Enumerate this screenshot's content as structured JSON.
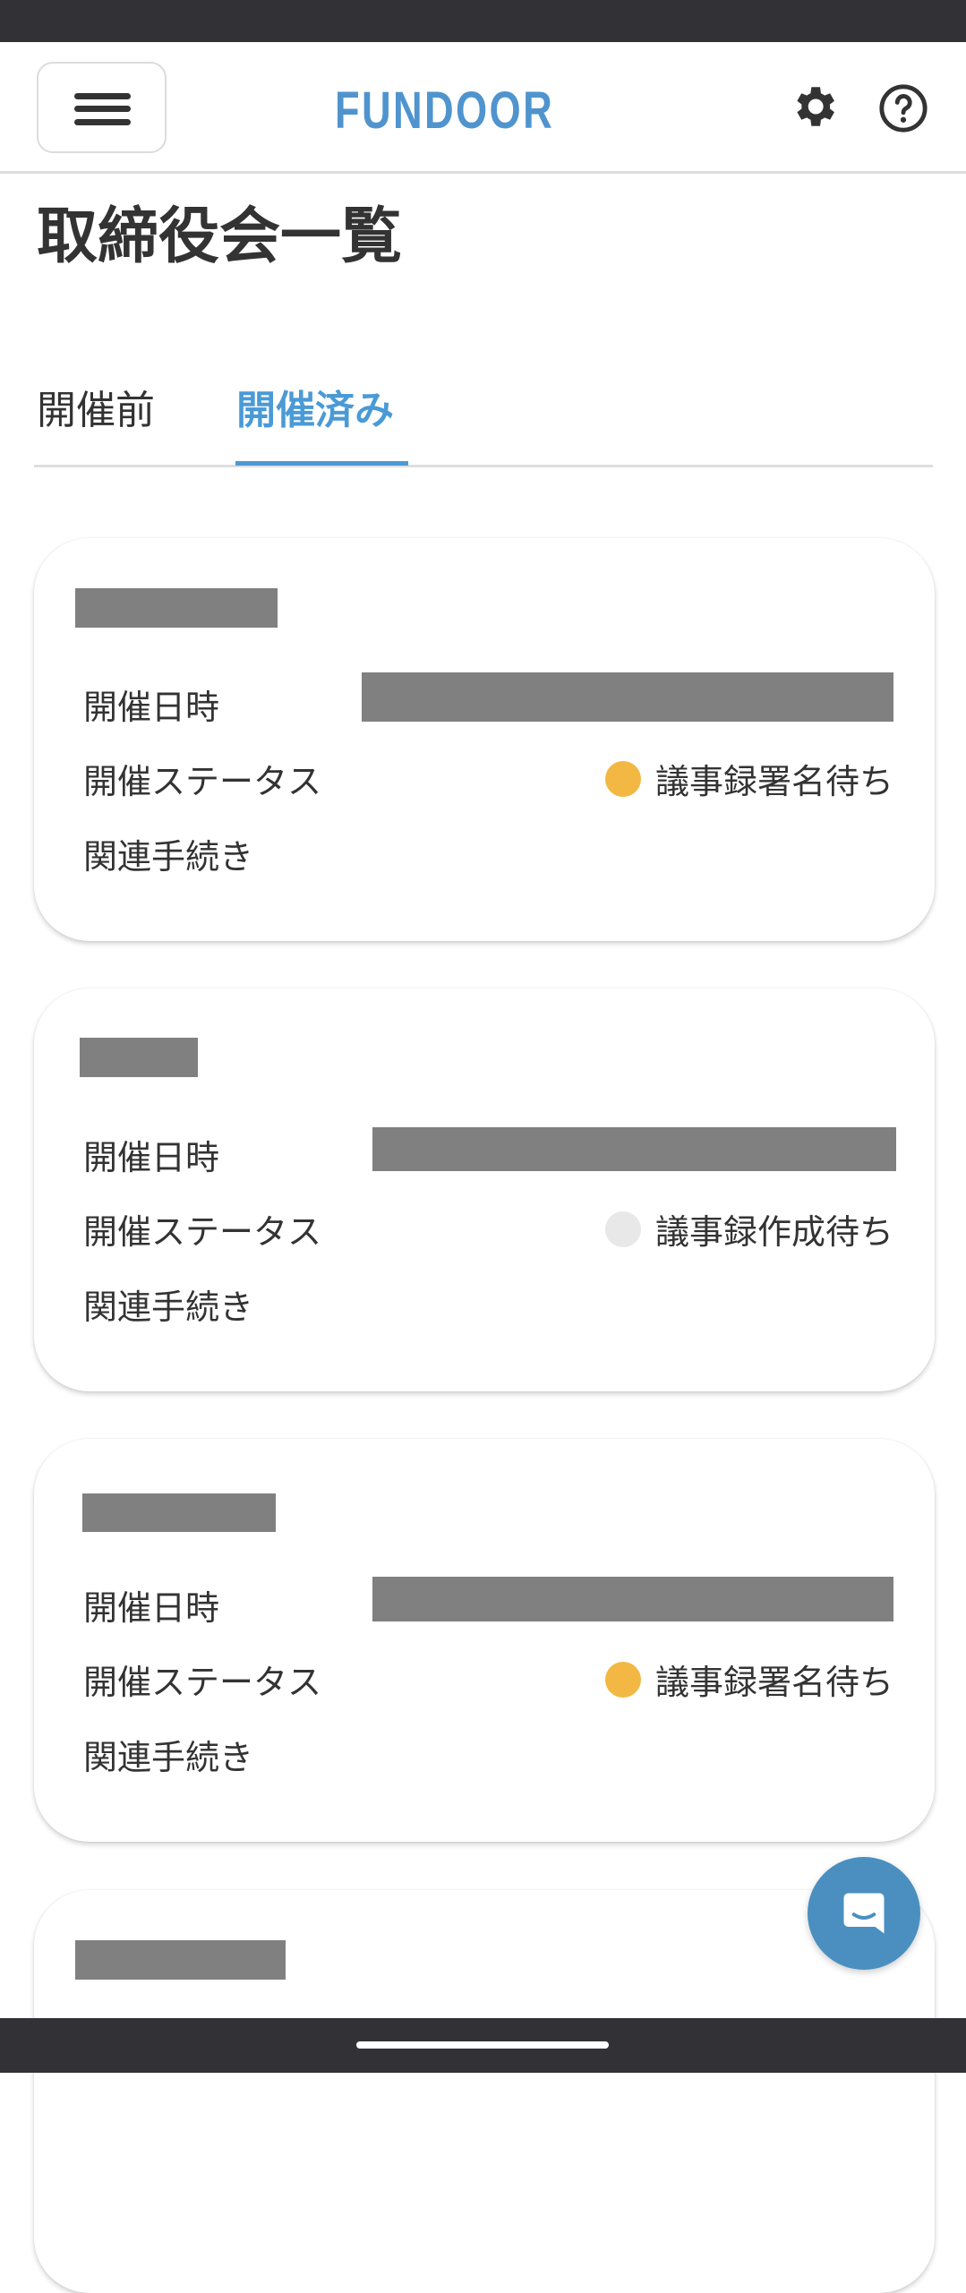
{
  "header": {
    "brand": "FUNDOOR",
    "icons": [
      "menu-icon",
      "gear-icon",
      "help-icon"
    ]
  },
  "page": {
    "title": "取締役会一覧",
    "tabs": [
      {
        "label": "開催前",
        "active": false
      },
      {
        "label": "開催済み",
        "active": true
      }
    ]
  },
  "labels": {
    "date": "開催日時",
    "status": "開催ステータス",
    "procedures": "関連手続き"
  },
  "meetings": [
    {
      "status": "議事録署名待ち",
      "status_color": "#f2b843"
    },
    {
      "status": "議事録作成待ち",
      "status_color": "#e8e8e8"
    },
    {
      "status": "議事録署名待ち",
      "status_color": "#f2b843"
    }
  ],
  "colors": {
    "accent": "#4a9ad6",
    "brand": "#4f94ce",
    "chat": "#4a8fc0"
  }
}
